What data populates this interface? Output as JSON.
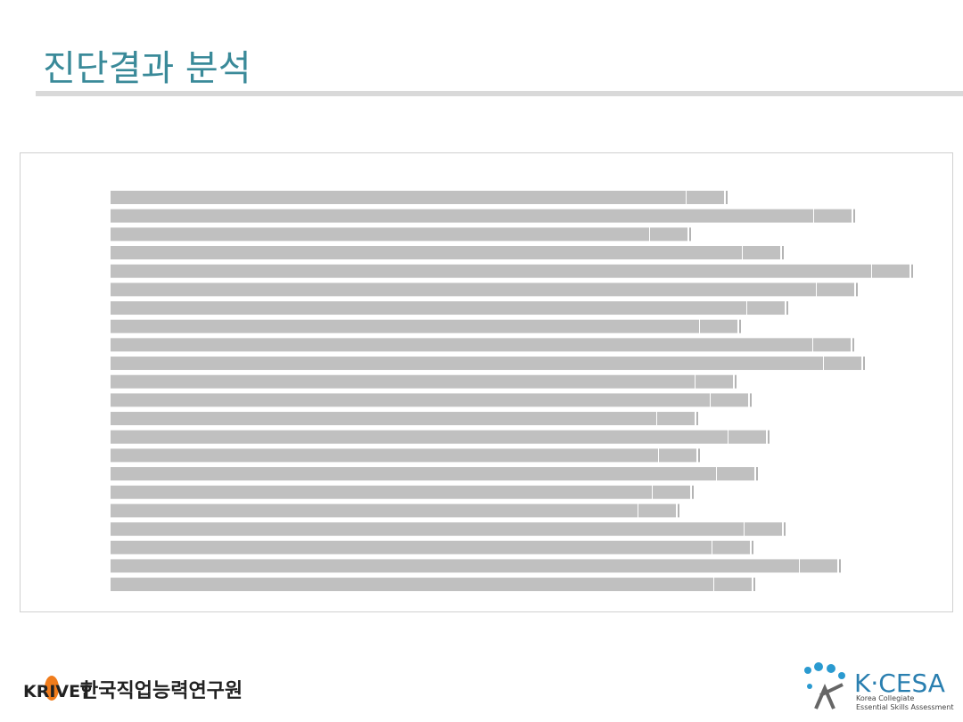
{
  "header": {
    "title": "진단결과 분석"
  },
  "footer": {
    "left_logo": "KRIVET",
    "left_org": "한국직업능력연구원",
    "right_logo": "K·CESA",
    "right_line1": "Korea Collegiate",
    "right_line2": "Essential Skills Assessment"
  },
  "chart_data": {
    "type": "bar",
    "orientation": "horizontal",
    "stacked": true,
    "xlim": [
      0,
      900
    ],
    "series": [
      {
        "color": "#c0c0c0",
        "values": [
          645,
          788,
          604,
          708,
          853,
          791,
          713,
          660,
          787,
          799,
          655,
          672,
          612,
          692,
          614,
          679,
          607,
          591,
          710,
          674,
          772,
          676
        ]
      },
      {
        "color": "#c0c0c0",
        "values": [
          43,
          43,
          43,
          43,
          43,
          43,
          43,
          43,
          43,
          43,
          43,
          43,
          43,
          43,
          43,
          43,
          43,
          43,
          43,
          43,
          43,
          43
        ]
      }
    ]
  }
}
